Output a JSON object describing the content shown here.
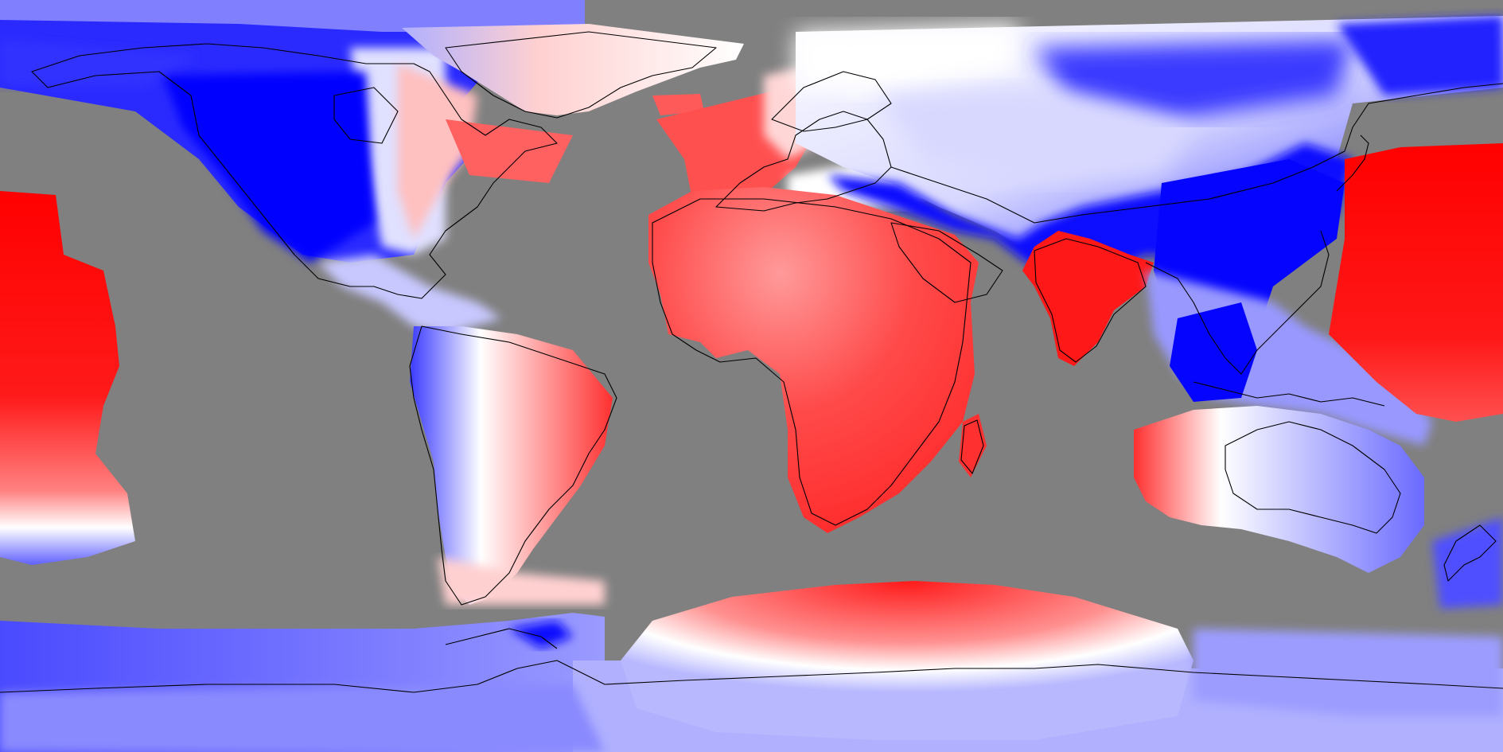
{
  "map": {
    "projection": "equirectangular",
    "background_color": "#808080",
    "coastline_color": "#000000",
    "colormap": [
      "#0000ff",
      "#ffffff",
      "#ff0000"
    ],
    "positive_color": "#ff1010",
    "negative_color": "#0a0aff",
    "masked_color": "#808080"
  }
}
